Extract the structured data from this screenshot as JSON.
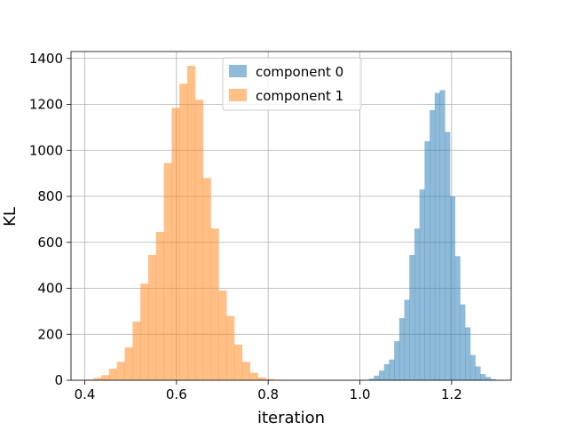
{
  "chart_data": {
    "type": "bar",
    "title": "",
    "xlabel": "iteration",
    "ylabel": "KL",
    "xlim": [
      0.37,
      1.33
    ],
    "ylim": [
      0,
      1430
    ],
    "xticks": [
      0.4,
      0.6,
      0.8,
      1.0,
      1.2
    ],
    "xtick_labels": [
      "0.4",
      "0.6",
      "0.8",
      "1.0",
      "1.2"
    ],
    "yticks": [
      0,
      200,
      400,
      600,
      800,
      1000,
      1200,
      1400
    ],
    "ytick_labels": [
      "0",
      "200",
      "400",
      "600",
      "800",
      "1000",
      "1200",
      "1400"
    ],
    "grid": true,
    "legend_position": "top-center",
    "series": [
      {
        "name": "component 0",
        "color": "#1f77b4",
        "opacity": 0.5,
        "bin_start": 1.0195,
        "bin_width": 0.01105,
        "values": [
          7,
          20,
          42,
          70,
          90,
          170,
          270,
          350,
          545,
          660,
          830,
          1040,
          1175,
          1250,
          1262,
          1080,
          800,
          540,
          330,
          230,
          110,
          60,
          27,
          14,
          5,
          2
        ]
      },
      {
        "name": "component 1",
        "color": "#ff7f0e",
        "opacity": 0.5,
        "bin_start": 0.402,
        "bin_width": 0.01705,
        "values": [
          3,
          10,
          22,
          50,
          80,
          143,
          255,
          420,
          545,
          645,
          945,
          1185,
          1290,
          1368,
          1220,
          880,
          660,
          390,
          280,
          155,
          80,
          33,
          12,
          5,
          2,
          1
        ]
      }
    ]
  }
}
